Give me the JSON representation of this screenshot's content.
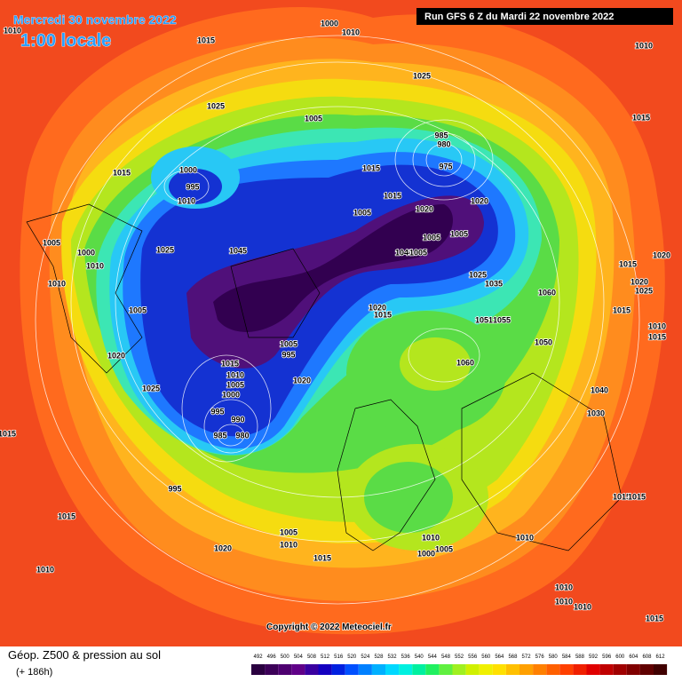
{
  "header": {
    "date": "Mercredi 30 novembre 2022",
    "time": "1:00 locale",
    "run": "Run GFS 6 Z du Mardi 22 novembre 2022"
  },
  "copyright": "Copyright © 2022 Meteociel.fr",
  "footer": {
    "title": "Géop. Z500 & pression au sol",
    "lead": "(+ 186h)"
  },
  "scale": {
    "values": [
      492,
      496,
      500,
      504,
      508,
      512,
      516,
      520,
      524,
      528,
      532,
      536,
      540,
      544,
      548,
      552,
      556,
      560,
      564,
      568,
      572,
      576,
      580,
      584,
      588,
      592,
      596,
      600,
      604,
      608,
      612
    ],
    "colors": [
      "#2a0040",
      "#3c0058",
      "#4e0070",
      "#600088",
      "#3a00a0",
      "#1400c0",
      "#0020e0",
      "#0050ff",
      "#0080ff",
      "#00b0ff",
      "#00d8ff",
      "#00f0e0",
      "#00f0a0",
      "#20f060",
      "#60f040",
      "#a0f020",
      "#d0f000",
      "#f0f000",
      "#ffe000",
      "#ffc000",
      "#ffa000",
      "#ff8000",
      "#ff6000",
      "#ff4000",
      "#f02000",
      "#e00000",
      "#c00000",
      "#a00000",
      "#800000",
      "#600000",
      "#400000"
    ]
  },
  "pressure_labels": [
    1010,
    1015,
    1000,
    1010,
    1025,
    1005,
    1025,
    1010,
    1015,
    1015,
    1000,
    995,
    1010,
    1005,
    1000,
    1010,
    1025,
    1045,
    1010,
    1005,
    1020,
    1025,
    1015,
    1010,
    1005,
    1000,
    995,
    990,
    985,
    980,
    995,
    1020,
    1010,
    1015,
    1005,
    1010,
    1015,
    1005,
    995,
    1020,
    1020,
    1015,
    1005,
    1015,
    1015,
    1020,
    1020,
    1005,
    1005,
    985,
    980,
    975,
    1040,
    1005,
    1025,
    1035,
    1060,
    1015,
    1020,
    1020,
    1025,
    1015,
    1010,
    1015,
    1050,
    1060,
    1051,
    1055,
    1040,
    1030,
    1015,
    1015,
    1015,
    1010,
    1005,
    1000,
    1010,
    1010,
    1010,
    1010,
    1015
  ]
}
